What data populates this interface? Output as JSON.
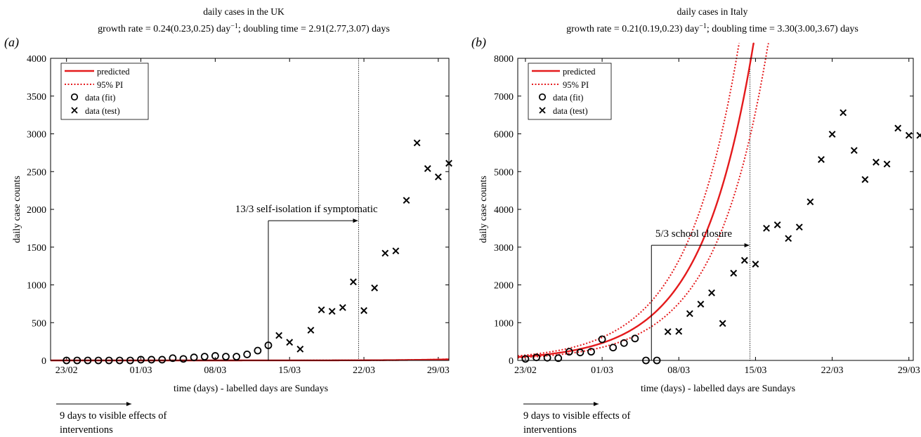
{
  "chart_data": [
    {
      "type": "scatter",
      "panel_label": "(a)",
      "title": "daily cases in the UK",
      "subtitle": {
        "pre": "growth rate = 0.24(0.23,0.25) day",
        "sup": "−1",
        "post": "; doubling time = 2.91(2.77,3.07) days"
      },
      "xlabel": "time (days) - labelled days are Sundays",
      "ylabel": "daily case counts",
      "xlim": [
        -1.5,
        36
      ],
      "ylim": [
        0,
        4000
      ],
      "yticks": [
        0,
        500,
        1000,
        1500,
        2000,
        2500,
        3000,
        3500,
        4000
      ],
      "xticks": [
        {
          "x": 0,
          "label": "23/02"
        },
        {
          "x": 7,
          "label": "01/03"
        },
        {
          "x": 14,
          "label": "08/03"
        },
        {
          "x": 21,
          "label": "15/03"
        },
        {
          "x": 28,
          "label": "22/03"
        },
        {
          "x": 35,
          "label": "29/03"
        }
      ],
      "legend": {
        "position": "top-left",
        "entries": [
          {
            "key": "predicted",
            "label": "predicted"
          },
          {
            "key": "pi",
            "label": "95% PI"
          },
          {
            "key": "fit",
            "label": "data (fit)"
          },
          {
            "key": "test",
            "label": "data (test)"
          }
        ]
      },
      "model": {
        "A": 0.00263,
        "r": 0.24,
        "A_lo": 0.0023,
        "A_hi": 0.003
      },
      "fit_cutoff_day": 27.5,
      "series": [
        {
          "name": "data (fit)",
          "x": [
            0,
            1,
            2,
            3,
            4,
            5,
            6,
            7,
            8,
            9,
            10,
            11,
            12,
            13,
            14,
            15,
            16,
            17,
            18,
            19
          ],
          "y": [
            0,
            0,
            0,
            0,
            0,
            0,
            0,
            10,
            10,
            10,
            30,
            20,
            40,
            50,
            60,
            50,
            50,
            80,
            130,
            200
          ]
        },
        {
          "name": "data (test)",
          "x": [
            20,
            21,
            22,
            23,
            24,
            25,
            26,
            27,
            28,
            29,
            30,
            31,
            32,
            33,
            34,
            35,
            36
          ],
          "y": [
            330,
            240,
            150,
            400,
            670,
            650,
            700,
            1040,
            660,
            960,
            1420,
            1450,
            2120,
            2880,
            2540,
            2430,
            2610
          ]
        }
      ],
      "annotation": {
        "label": "13/3 self-isolation if symptomatic",
        "x_start": 19,
        "x_end": 27.5,
        "y": 1850
      },
      "note": {
        "text": "9 days to visible effects of interventions",
        "lines": [
          "9 days to visible effects of",
          "interventions"
        ]
      }
    },
    {
      "type": "scatter",
      "panel_label": "(b)",
      "title": "daily cases in Italy",
      "subtitle": {
        "pre": "growth rate = 0.21(0.19,0.23) day",
        "sup": "−1",
        "post": "; doubling time = 3.30(3.00,3.67) days"
      },
      "xlabel": "time (days) - labelled days are Sundays",
      "ylabel": "daily case counts",
      "xlim": [
        -0.7,
        35.4
      ],
      "ylim": [
        0,
        8000
      ],
      "yticks": [
        0,
        1000,
        2000,
        3000,
        4000,
        5000,
        6000,
        7000,
        8000
      ],
      "xticks": [
        {
          "x": 0,
          "label": "23/02"
        },
        {
          "x": 7,
          "label": "01/03"
        },
        {
          "x": 14,
          "label": "08/03"
        },
        {
          "x": 21,
          "label": "15/03"
        },
        {
          "x": 28,
          "label": "22/03"
        },
        {
          "x": 35,
          "label": "29/03"
        }
      ],
      "legend": {
        "position": "top-left",
        "entries": [
          {
            "key": "predicted",
            "label": "predicted"
          },
          {
            "key": "pi",
            "label": "95% PI"
          },
          {
            "key": "fit",
            "label": "data (fit)"
          },
          {
            "key": "test",
            "label": "data (test)"
          }
        ]
      },
      "model": {
        "A": 106,
        "r": 0.21,
        "A_lo": 80,
        "A_hi": 140
      },
      "fit_cutoff_day": 20.5,
      "series": [
        {
          "name": "data (fit)",
          "x": [
            0,
            1,
            2,
            3,
            4,
            5,
            6,
            7,
            8,
            9,
            10,
            11,
            12
          ],
          "y": [
            40,
            80,
            70,
            60,
            230,
            210,
            230,
            560,
            340,
            460,
            580,
            0,
            0
          ]
        },
        {
          "name": "data (test)",
          "x": [
            13,
            14,
            15,
            16,
            17,
            18,
            19,
            20,
            21,
            22,
            23,
            24,
            25,
            26,
            27,
            28,
            29,
            30,
            31,
            32,
            33,
            34,
            35,
            36
          ],
          "y": [
            760,
            770,
            1240,
            1490,
            1790,
            980,
            2310,
            2650,
            2550,
            3500,
            3590,
            3230,
            3530,
            4200,
            5320,
            5990,
            6560,
            5560,
            4790,
            5250,
            5200,
            6150,
            5960,
            5960
          ]
        }
      ],
      "annotation": {
        "label": "5/3 school closure",
        "x_start": 11.5,
        "x_end": 20.5,
        "y": 3050
      },
      "note": {
        "text": "9 days to visible effects of interventions",
        "lines": [
          "9 days to visible effects of",
          "interventions"
        ]
      }
    }
  ]
}
